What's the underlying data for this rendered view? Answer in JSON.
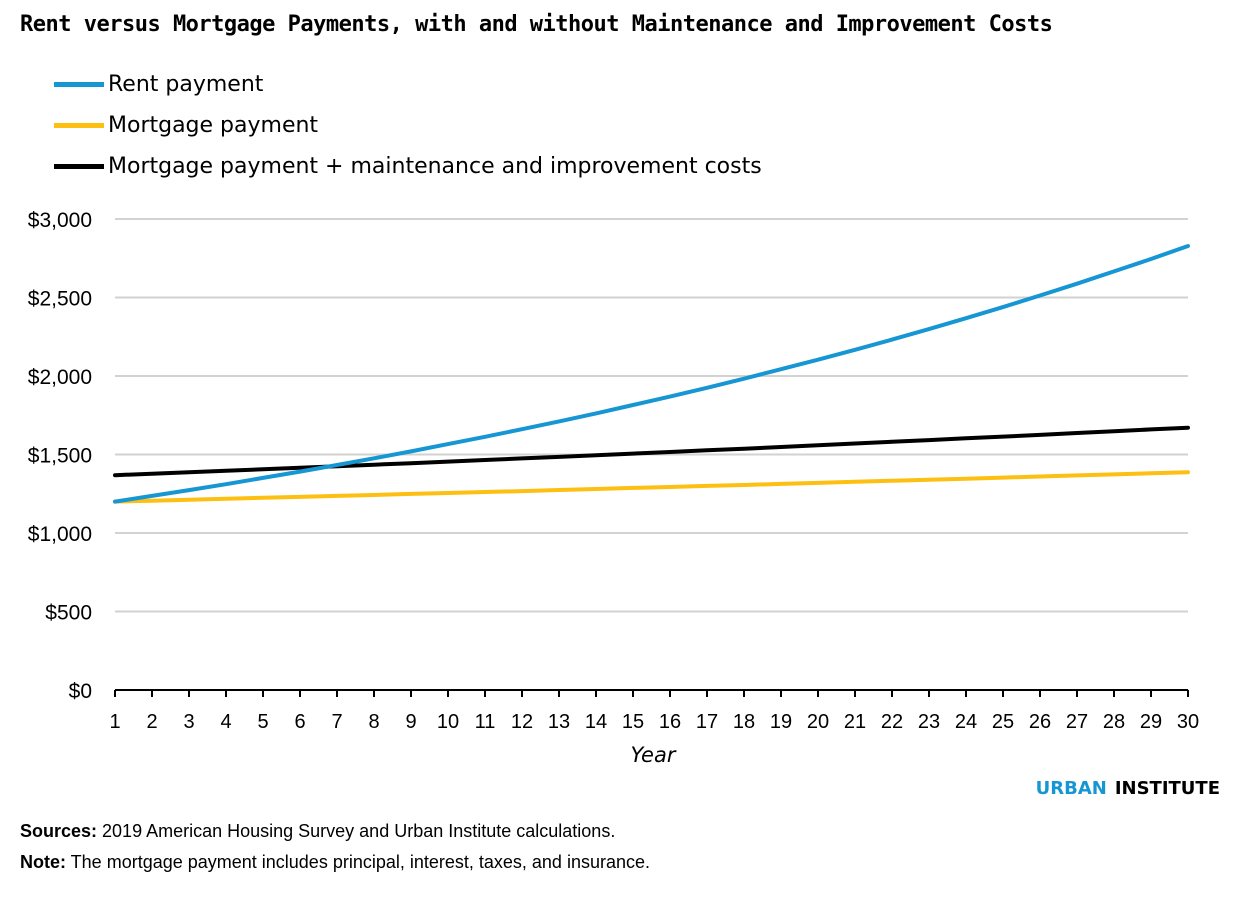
{
  "chart_data": {
    "type": "line",
    "title": "Rent versus Mortgage Payments, with and without Maintenance and Improvement Costs",
    "xlabel": "Year",
    "ylabel": "",
    "x": [
      1,
      2,
      3,
      4,
      5,
      6,
      7,
      8,
      9,
      10,
      11,
      12,
      13,
      14,
      15,
      16,
      17,
      18,
      19,
      20,
      21,
      22,
      23,
      24,
      25,
      26,
      27,
      28,
      29,
      30
    ],
    "x_tick_labels": [
      "1",
      "2",
      "3",
      "4",
      "5",
      "6",
      "7",
      "8",
      "9",
      "10",
      "11",
      "12",
      "13",
      "14",
      "15",
      "16",
      "17",
      "18",
      "19",
      "20",
      "21",
      "22",
      "23",
      "24",
      "25",
      "26",
      "27",
      "28",
      "29",
      "30"
    ],
    "ylim": [
      0,
      3000
    ],
    "y_ticks": [
      0,
      500,
      1000,
      1500,
      2000,
      2500,
      3000
    ],
    "y_tick_labels": [
      "$0",
      "$500",
      "$1,000",
      "$1,500",
      "$2,000",
      "$2,500",
      "$3,000"
    ],
    "grid": true,
    "legend_position": "top-left",
    "series": [
      {
        "name": "Rent payment",
        "color": "#1696d2",
        "values": [
          1200,
          1236,
          1273,
          1311,
          1351,
          1391,
          1433,
          1476,
          1520,
          1566,
          1613,
          1661,
          1711,
          1762,
          1815,
          1869,
          1925,
          1983,
          2043,
          2104,
          2167,
          2232,
          2299,
          2368,
          2439,
          2513,
          2588,
          2666,
          2745,
          2828
        ]
      },
      {
        "name": "Mortgage payment",
        "color": "#fdbf11",
        "values": [
          1200,
          1206,
          1212,
          1218,
          1224,
          1230,
          1236,
          1242,
          1249,
          1255,
          1261,
          1267,
          1274,
          1280,
          1287,
          1293,
          1300,
          1306,
          1313,
          1319,
          1326,
          1333,
          1339,
          1346,
          1353,
          1360,
          1367,
          1373,
          1380,
          1387
        ]
      },
      {
        "name": "Mortgage payment + maintenance and improvement costs",
        "color": "#000000",
        "values": [
          1368,
          1378,
          1387,
          1396,
          1406,
          1416,
          1425,
          1435,
          1444,
          1455,
          1465,
          1475,
          1485,
          1495,
          1506,
          1516,
          1527,
          1537,
          1548,
          1559,
          1570,
          1581,
          1592,
          1603,
          1614,
          1625,
          1637,
          1648,
          1660,
          1671
        ]
      }
    ]
  },
  "brand": {
    "part1": "URBAN",
    "part2": "INSTITUTE",
    "color1": "#1696d2"
  },
  "notes": {
    "sources_label": "Sources:",
    "sources_text": " 2019 American Housing Survey and Urban Institute calculations.",
    "note_label": "Note:",
    "note_text": " The mortgage payment includes principal, interest, taxes, and insurance."
  }
}
